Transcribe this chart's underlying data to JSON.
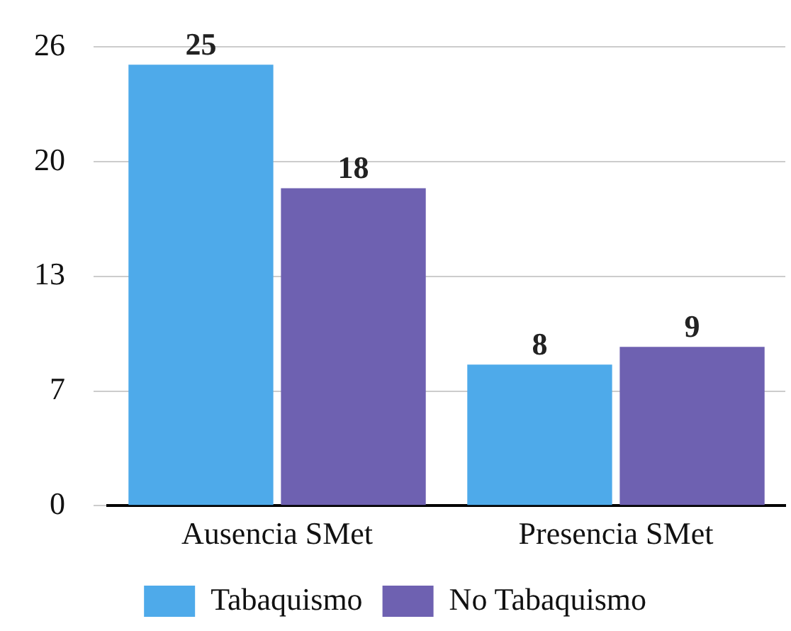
{
  "chart_data": {
    "type": "bar",
    "categories": [
      "Ausencia SMet",
      "Presencia SMet"
    ],
    "series": [
      {
        "name": "Tabaquismo",
        "color": "#4eaaea",
        "values": [
          25,
          8
        ]
      },
      {
        "name": "No Tabaquismo",
        "color": "#6e61b1",
        "values": [
          18,
          9
        ]
      }
    ],
    "ylim": [
      0,
      26
    ],
    "yticks": [
      0,
      {
        "value": 6.5,
        "label": "7"
      },
      13,
      {
        "value": 19.5,
        "label": "20"
      },
      26
    ],
    "grid": "y",
    "legend": "bottom",
    "data_labels": true
  }
}
